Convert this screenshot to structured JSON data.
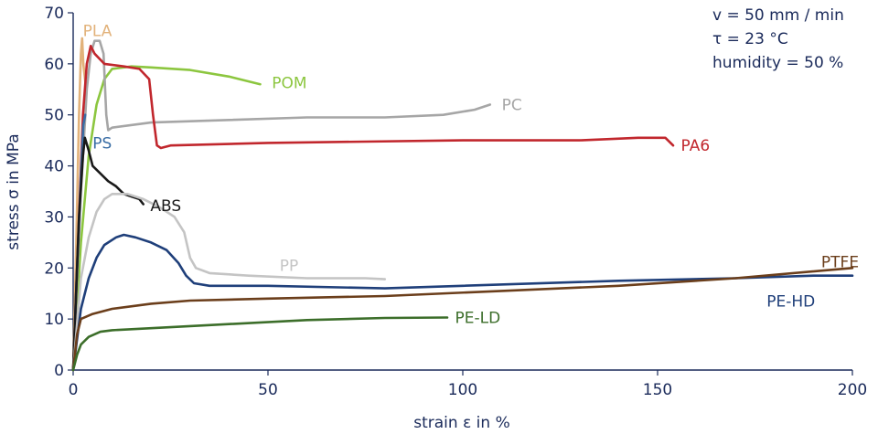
{
  "chart_data": {
    "type": "line",
    "xlabel": "strain ε in %",
    "ylabel": "stress σ in MPa",
    "xlim": [
      0,
      200
    ],
    "ylim": [
      0,
      70
    ],
    "xticks": [
      0,
      50,
      100,
      150,
      200
    ],
    "yticks": [
      0,
      10,
      20,
      30,
      40,
      50,
      60,
      70
    ],
    "conditions": [
      "v = 50 mm / min",
      "τ = 23 °C",
      "humidity = 50 %"
    ],
    "series": [
      {
        "name": "PLA",
        "color": "#e2b27a",
        "label_at": [
          2.5,
          66.5
        ],
        "points": [
          [
            0,
            0
          ],
          [
            0.8,
            25
          ],
          [
            1.5,
            50
          ],
          [
            2.0,
            62
          ],
          [
            2.3,
            65
          ],
          [
            2.6,
            60
          ],
          [
            3.2,
            56
          ]
        ]
      },
      {
        "name": "POM",
        "color": "#8cc63f",
        "label_at": [
          51,
          56.3
        ],
        "points": [
          [
            0,
            0
          ],
          [
            2,
            25
          ],
          [
            4,
            42
          ],
          [
            6,
            52
          ],
          [
            8,
            57
          ],
          [
            10,
            59
          ],
          [
            15,
            59.5
          ],
          [
            20,
            59.3
          ],
          [
            30,
            58.8
          ],
          [
            40,
            57.5
          ],
          [
            48,
            56
          ]
        ]
      },
      {
        "name": "PC",
        "color": "#a6a6a6",
        "label_at": [
          110,
          52
        ],
        "points": [
          [
            0,
            0
          ],
          [
            2,
            35
          ],
          [
            3.5,
            55
          ],
          [
            4.5,
            62
          ],
          [
            5.5,
            64.5
          ],
          [
            6.8,
            64.5
          ],
          [
            7.8,
            62
          ],
          [
            8.5,
            50
          ],
          [
            9,
            47
          ],
          [
            10,
            47.5
          ],
          [
            20,
            48.5
          ],
          [
            40,
            49
          ],
          [
            60,
            49.5
          ],
          [
            80,
            49.5
          ],
          [
            95,
            50
          ],
          [
            103,
            51
          ],
          [
            107,
            52
          ]
        ]
      },
      {
        "name": "PA6",
        "color": "#c1272d",
        "label_at": [
          156,
          44
        ],
        "points": [
          [
            0,
            0
          ],
          [
            1.5,
            30
          ],
          [
            2.5,
            50
          ],
          [
            3.5,
            60
          ],
          [
            4.5,
            63.5
          ],
          [
            5.5,
            62
          ],
          [
            8,
            60
          ],
          [
            13,
            59.5
          ],
          [
            17,
            59
          ],
          [
            19.5,
            57
          ],
          [
            20.5,
            50
          ],
          [
            21.5,
            44
          ],
          [
            22.5,
            43.5
          ],
          [
            25,
            44
          ],
          [
            50,
            44.5
          ],
          [
            100,
            45
          ],
          [
            130,
            45
          ],
          [
            145,
            45.5
          ],
          [
            152,
            45.5
          ],
          [
            154,
            44
          ]
        ]
      },
      {
        "name": "PS",
        "color": "#3a6ea5",
        "label_at": [
          5,
          44.5
        ],
        "points": [
          [
            0,
            0
          ],
          [
            1,
            20
          ],
          [
            2,
            38
          ],
          [
            2.6,
            48
          ],
          [
            3.1,
            50
          ]
        ]
      },
      {
        "name": "ABS",
        "color": "#1a1a1a",
        "label_at": [
          19.8,
          32.2
        ],
        "points": [
          [
            0,
            0
          ],
          [
            1.5,
            30
          ],
          [
            2.5,
            42
          ],
          [
            3,
            45.5
          ],
          [
            4,
            43
          ],
          [
            5,
            40
          ],
          [
            7,
            38.5
          ],
          [
            9,
            37
          ],
          [
            11,
            36
          ],
          [
            13,
            34.5
          ],
          [
            15,
            34
          ],
          [
            17,
            33.5
          ],
          [
            18,
            32.5
          ]
        ]
      },
      {
        "name": "PP",
        "color": "#c4c4c4",
        "label_at": [
          53,
          20.5
        ],
        "points": [
          [
            0,
            0
          ],
          [
            2,
            18
          ],
          [
            4,
            26
          ],
          [
            6,
            31
          ],
          [
            8,
            33.5
          ],
          [
            10,
            34.5
          ],
          [
            14,
            34.5
          ],
          [
            18,
            33.5
          ],
          [
            22,
            32
          ],
          [
            26,
            30
          ],
          [
            28.5,
            27
          ],
          [
            30,
            22
          ],
          [
            31.5,
            20
          ],
          [
            35,
            19
          ],
          [
            45,
            18.5
          ],
          [
            60,
            18
          ],
          [
            75,
            18
          ],
          [
            80,
            17.8
          ]
        ]
      },
      {
        "name": "PE-HD",
        "color": "#1f3f7a",
        "label_at": [
          178,
          13.5
        ],
        "points": [
          [
            0,
            0
          ],
          [
            2,
            12
          ],
          [
            4,
            18
          ],
          [
            6,
            22
          ],
          [
            8,
            24.5
          ],
          [
            11,
            26
          ],
          [
            13,
            26.5
          ],
          [
            16,
            26
          ],
          [
            20,
            25
          ],
          [
            24,
            23.5
          ],
          [
            27,
            21
          ],
          [
            29,
            18.5
          ],
          [
            31,
            17
          ],
          [
            35,
            16.5
          ],
          [
            50,
            16.5
          ],
          [
            80,
            16
          ],
          [
            100,
            16.5
          ],
          [
            140,
            17.5
          ],
          [
            170,
            18
          ],
          [
            190,
            18.5
          ],
          [
            200,
            18.5
          ]
        ]
      },
      {
        "name": "PTFE",
        "color": "#6b3e1b",
        "label_at": [
          192,
          21.2
        ],
        "points": [
          [
            0,
            0
          ],
          [
            1,
            7
          ],
          [
            2,
            10
          ],
          [
            5,
            11
          ],
          [
            10,
            12
          ],
          [
            20,
            13
          ],
          [
            30,
            13.6
          ],
          [
            50,
            14
          ],
          [
            80,
            14.5
          ],
          [
            110,
            15.5
          ],
          [
            140,
            16.5
          ],
          [
            170,
            18
          ],
          [
            200,
            20
          ]
        ]
      },
      {
        "name": "PE-LD",
        "color": "#3c6e2a",
        "label_at": [
          98,
          10.3
        ],
        "points": [
          [
            0,
            0
          ],
          [
            1,
            3
          ],
          [
            2,
            5
          ],
          [
            4,
            6.5
          ],
          [
            7,
            7.5
          ],
          [
            10,
            7.8
          ],
          [
            20,
            8.2
          ],
          [
            40,
            9
          ],
          [
            60,
            9.8
          ],
          [
            80,
            10.2
          ],
          [
            96,
            10.3
          ]
        ]
      }
    ]
  }
}
